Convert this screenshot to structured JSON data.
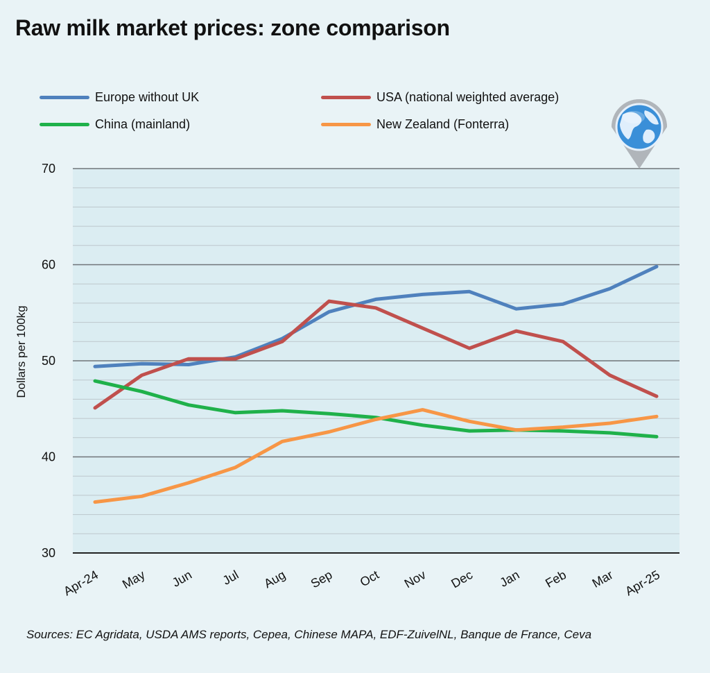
{
  "title": "Raw milk market prices: zone comparison",
  "source": "Sources: EC Agridata, USDA AMS reports, Cepea, Chinese MAPA, EDF-ZuivelNL, Banque de France, Ceva",
  "icon": "globe-map-pin-icon",
  "colors": {
    "background": "#e9f3f6",
    "plot_background": "#dbedf2",
    "europe": "#4f81bd",
    "usa": "#c0504d",
    "china": "#1fb14a",
    "new_zealand": "#f79646"
  },
  "legend": [
    {
      "name": "Europe without UK",
      "color": "#4f81bd"
    },
    {
      "name": "USA (national weighted average)",
      "color": "#c0504d"
    },
    {
      "name": "China (mainland)",
      "color": "#1fb14a"
    },
    {
      "name": "New Zealand (Fonterra)",
      "color": "#f79646"
    }
  ],
  "chart_data": {
    "type": "line",
    "title": "Raw milk market prices: zone comparison",
    "xlabel": "",
    "ylabel": "Dollars per 100kg",
    "categories": [
      "Apr-24",
      "May",
      "Jun",
      "Jul",
      "Aug",
      "Sep",
      "Oct",
      "Nov",
      "Dec",
      "Jan",
      "Feb",
      "Mar",
      "Apr-25"
    ],
    "ylim": [
      30,
      70
    ],
    "yticks": [
      "30",
      "40",
      "50",
      "60",
      "70"
    ],
    "grid": true,
    "legend_position": "top",
    "series": [
      {
        "name": "Europe without UK",
        "color": "#4f81bd",
        "values": [
          49.4,
          49.7,
          49.6,
          50.4,
          52.3,
          55.1,
          56.4,
          56.9,
          57.2,
          55.4,
          55.9,
          57.5,
          59.8
        ]
      },
      {
        "name": "USA (national weighted average)",
        "color": "#c0504d",
        "values": [
          45.1,
          48.5,
          50.2,
          50.2,
          52.0,
          56.2,
          55.5,
          53.4,
          51.3,
          53.1,
          52.0,
          48.5,
          46.3
        ]
      },
      {
        "name": "China (mainland)",
        "color": "#1fb14a",
        "values": [
          47.9,
          46.8,
          45.4,
          44.6,
          44.8,
          44.5,
          44.1,
          43.3,
          42.7,
          42.8,
          42.7,
          42.5,
          42.1
        ]
      },
      {
        "name": "New Zealand (Fonterra)",
        "color": "#f79646",
        "values": [
          35.3,
          35.9,
          37.3,
          38.9,
          41.6,
          42.6,
          43.9,
          44.9,
          43.7,
          42.8,
          43.1,
          43.5,
          44.2
        ]
      }
    ]
  }
}
